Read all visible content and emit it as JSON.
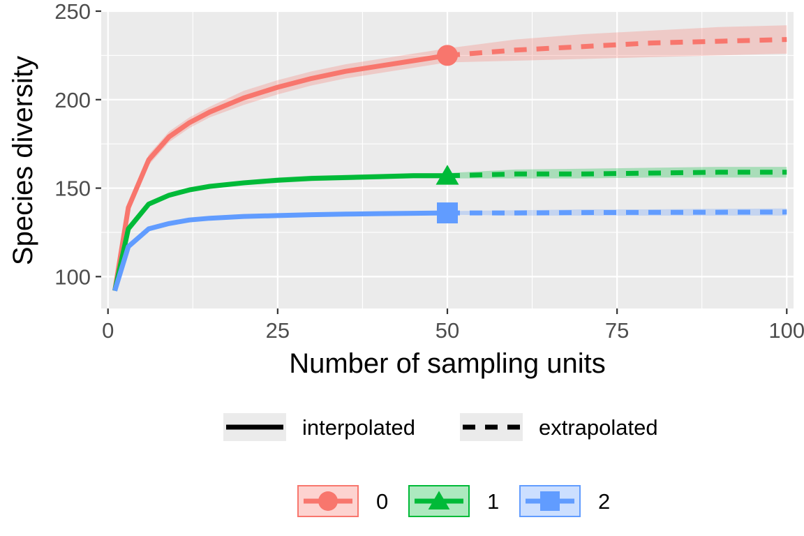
{
  "chart_data": {
    "type": "line",
    "xlabel": "Number of sampling units",
    "ylabel": "Species diversity",
    "xlim": [
      -1,
      101
    ],
    "ylim": [
      82,
      250
    ],
    "x_ticks": [
      0,
      25,
      50,
      75,
      100
    ],
    "y_ticks": [
      100,
      150,
      200,
      250
    ],
    "grid": true,
    "linetype_legend": {
      "position": "bottom",
      "entries": [
        {
          "label": "interpolated",
          "dash": "solid"
        },
        {
          "label": "extrapolated",
          "dash": "dashed"
        }
      ]
    },
    "series_legend": {
      "position": "bottom",
      "entries": [
        "0",
        "1",
        "2"
      ]
    },
    "series": [
      {
        "name": "0",
        "color": "#F8766D",
        "marker": "circle",
        "observed": {
          "x": 50,
          "y": 225
        },
        "interpolated": {
          "x": [
            1,
            3,
            6,
            9,
            12,
            15,
            20,
            25,
            30,
            35,
            40,
            45,
            50
          ],
          "y": [
            92,
            139,
            166,
            179,
            187,
            193,
            201,
            207,
            212,
            216,
            219,
            222,
            225
          ],
          "lower": [
            92,
            137,
            163,
            176,
            184,
            190,
            197,
            203,
            208,
            212,
            215,
            218,
            221
          ],
          "upper": [
            92,
            141,
            169,
            182,
            190,
            196,
            205,
            211,
            216,
            220,
            223,
            226,
            229
          ]
        },
        "extrapolated": {
          "x": [
            50,
            60,
            70,
            80,
            90,
            100
          ],
          "y": [
            225,
            228,
            230,
            232,
            233,
            234
          ],
          "lower": [
            221,
            222,
            223,
            224,
            225,
            226
          ],
          "upper": [
            229,
            234,
            237,
            239,
            241,
            242
          ]
        }
      },
      {
        "name": "1",
        "color": "#00BA38",
        "marker": "triangle",
        "observed": {
          "x": 50,
          "y": 157
        },
        "interpolated": {
          "x": [
            1,
            3,
            6,
            9,
            12,
            15,
            20,
            25,
            30,
            35,
            40,
            45,
            50
          ],
          "y": [
            92,
            127,
            141,
            146,
            149,
            151,
            153,
            154.5,
            155.5,
            156,
            156.5,
            157,
            157
          ],
          "lower": [
            92,
            126,
            140,
            145,
            148,
            150,
            152,
            153,
            154,
            154.5,
            155,
            155.5,
            155.5
          ],
          "upper": [
            92,
            128,
            142,
            147,
            150,
            152,
            154,
            156,
            157,
            157.5,
            158,
            158.5,
            158.5
          ]
        },
        "extrapolated": {
          "x": [
            50,
            60,
            70,
            80,
            90,
            100
          ],
          "y": [
            157,
            158,
            158,
            158.5,
            159,
            159
          ],
          "lower": [
            155.5,
            155.5,
            155.5,
            156,
            156,
            156
          ],
          "upper": [
            158.5,
            160.5,
            161,
            161.5,
            162,
            162
          ]
        }
      },
      {
        "name": "2",
        "color": "#619CFF",
        "marker": "square",
        "observed": {
          "x": 50,
          "y": 136
        },
        "interpolated": {
          "x": [
            1,
            3,
            6,
            9,
            12,
            15,
            20,
            25,
            30,
            35,
            40,
            45,
            50
          ],
          "y": [
            92,
            117,
            127,
            130,
            132,
            133,
            134,
            134.5,
            135,
            135.3,
            135.6,
            135.8,
            136
          ],
          "lower": [
            92,
            116,
            126,
            129,
            131,
            132,
            133,
            133.5,
            134,
            134.3,
            134.6,
            134.8,
            135
          ],
          "upper": [
            92,
            118,
            128,
            131,
            133,
            134,
            135,
            135.5,
            136,
            136.3,
            136.6,
            136.8,
            137
          ]
        },
        "extrapolated": {
          "x": [
            50,
            60,
            70,
            80,
            90,
            100
          ],
          "y": [
            136,
            136,
            136.2,
            136.3,
            136.4,
            136.5
          ],
          "lower": [
            135,
            134.5,
            134.5,
            134.5,
            134.5,
            134.5
          ],
          "upper": [
            137,
            137.5,
            138,
            138,
            138.3,
            138.5
          ]
        }
      }
    ]
  }
}
